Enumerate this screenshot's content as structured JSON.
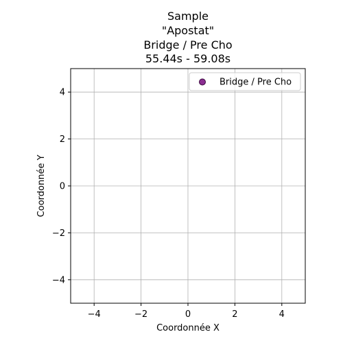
{
  "chart_data": {
    "type": "scatter",
    "title_lines": [
      "Sample",
      "\"Apostat\"",
      "Bridge / Pre Cho",
      "55.44s - 59.08s"
    ],
    "xlabel": "Coordonnée X",
    "ylabel": "Coordonnée Y",
    "xlim": [
      -5,
      5
    ],
    "ylim": [
      -5,
      5
    ],
    "x_ticks": [
      -4,
      -2,
      0,
      2,
      4
    ],
    "y_ticks": [
      -4,
      -2,
      0,
      2,
      4
    ],
    "x_tick_labels": [
      "−4",
      "−2",
      "0",
      "2",
      "4"
    ],
    "y_tick_labels": [
      "−4",
      "−2",
      "0",
      "2",
      "4"
    ],
    "grid": true,
    "legend_position": "top-right",
    "series": [
      {
        "name": "Bridge / Pre Cho",
        "color": "#8b2d91",
        "edge_color": "#3a0a3d",
        "points": []
      }
    ]
  }
}
